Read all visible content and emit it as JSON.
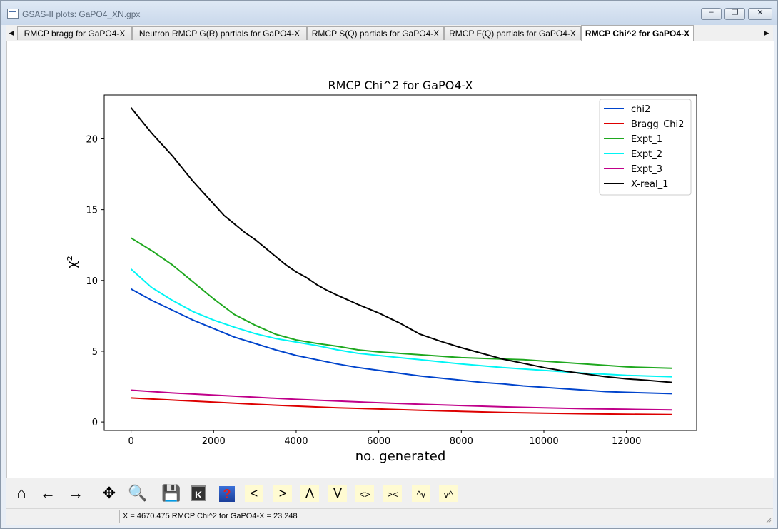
{
  "window": {
    "title": "GSAS-II plots: GaPO4_XN.gpx",
    "min_glyph": "–",
    "max_glyph": "❐",
    "close_glyph": "✕"
  },
  "tabs": [
    {
      "label": "RMCP bragg for GaPO4-X"
    },
    {
      "label": "Neutron RMCP G(R) partials for GaPO4-X"
    },
    {
      "label": "RMCP S(Q) partials for GaPO4-X"
    },
    {
      "label": "RMCP F(Q) partials for GaPO4-X"
    },
    {
      "label": "RMCP Chi^2 for GaPO4-X",
      "active": true
    }
  ],
  "chart_data": {
    "type": "line",
    "title": "RMCP Chi^2 for GaPO4-X",
    "xlabel": "no. generated",
    "ylabel": "χ²",
    "xlim": [
      -650,
      13700
    ],
    "ylim": [
      -0.6,
      23.1
    ],
    "xticks": [
      0,
      2000,
      4000,
      6000,
      8000,
      10000,
      12000
    ],
    "yticks": [
      0,
      5,
      10,
      15,
      20
    ],
    "legend_position": "top-right",
    "grid": false,
    "series": [
      {
        "name": "chi2",
        "color": "#0044cc",
        "x": [
          0,
          500,
          1000,
          1500,
          2000,
          2500,
          3000,
          3500,
          4000,
          4500,
          5000,
          5500,
          6000,
          6500,
          7000,
          7500,
          8000,
          8500,
          9000,
          9500,
          10000,
          10500,
          11000,
          11500,
          12000,
          12500,
          13100
        ],
        "y": [
          9.4,
          8.6,
          7.9,
          7.2,
          6.6,
          6.0,
          5.55,
          5.1,
          4.7,
          4.4,
          4.1,
          3.85,
          3.65,
          3.45,
          3.25,
          3.1,
          2.95,
          2.8,
          2.7,
          2.55,
          2.45,
          2.35,
          2.25,
          2.15,
          2.1,
          2.05,
          2.0
        ]
      },
      {
        "name": "Bragg_Chi2",
        "color": "#dd0000",
        "x": [
          0,
          1000,
          2000,
          3000,
          4000,
          5000,
          6000,
          7000,
          8000,
          9000,
          10000,
          11000,
          12000,
          13100
        ],
        "y": [
          1.7,
          1.55,
          1.4,
          1.25,
          1.12,
          1.0,
          0.92,
          0.82,
          0.75,
          0.67,
          0.62,
          0.58,
          0.55,
          0.52
        ]
      },
      {
        "name": "Expt_1",
        "color": "#1fa81f",
        "x": [
          0,
          500,
          1000,
          1500,
          2000,
          2500,
          3000,
          3500,
          4000,
          4500,
          5000,
          5500,
          6000,
          6500,
          7000,
          7500,
          8000,
          8500,
          9000,
          9500,
          10000,
          10500,
          11000,
          11500,
          12000,
          12500,
          13100
        ],
        "y": [
          13.0,
          12.1,
          11.1,
          9.9,
          8.7,
          7.6,
          6.85,
          6.2,
          5.8,
          5.55,
          5.35,
          5.1,
          4.95,
          4.85,
          4.75,
          4.65,
          4.55,
          4.5,
          4.45,
          4.4,
          4.3,
          4.2,
          4.1,
          4.0,
          3.9,
          3.85,
          3.8
        ]
      },
      {
        "name": "Expt_2",
        "color": "#00f5f5",
        "x": [
          0,
          500,
          1000,
          1500,
          2000,
          2500,
          3000,
          3500,
          4000,
          4500,
          5000,
          5500,
          6000,
          6500,
          7000,
          7500,
          8000,
          8500,
          9000,
          9500,
          10000,
          10500,
          11000,
          11500,
          12000,
          12500,
          13100
        ],
        "y": [
          10.8,
          9.5,
          8.6,
          7.8,
          7.2,
          6.7,
          6.25,
          5.9,
          5.65,
          5.4,
          5.1,
          4.85,
          4.7,
          4.55,
          4.4,
          4.25,
          4.1,
          3.98,
          3.85,
          3.75,
          3.65,
          3.55,
          3.45,
          3.38,
          3.3,
          3.25,
          3.2
        ]
      },
      {
        "name": "Expt_3",
        "color": "#c0008a",
        "x": [
          0,
          1000,
          2000,
          3000,
          4000,
          5000,
          6000,
          7000,
          8000,
          9000,
          10000,
          11000,
          12000,
          13100
        ],
        "y": [
          2.25,
          2.05,
          1.9,
          1.75,
          1.6,
          1.48,
          1.36,
          1.25,
          1.16,
          1.07,
          1.0,
          0.94,
          0.9,
          0.85
        ]
      },
      {
        "name": "X-real_1",
        "color": "#000000",
        "x": [
          0,
          250,
          500,
          750,
          1000,
          1250,
          1500,
          1750,
          2000,
          2250,
          2500,
          2750,
          3000,
          3250,
          3500,
          3750,
          4000,
          4250,
          4500,
          4750,
          5000,
          5500,
          6000,
          6500,
          7000,
          7500,
          8000,
          8500,
          9000,
          9500,
          10000,
          10500,
          11000,
          11500,
          12000,
          12500,
          13100
        ],
        "y": [
          22.2,
          21.3,
          20.4,
          19.6,
          18.8,
          17.9,
          17.0,
          16.2,
          15.4,
          14.6,
          14.0,
          13.4,
          12.9,
          12.3,
          11.7,
          11.1,
          10.6,
          10.2,
          9.7,
          9.3,
          8.95,
          8.3,
          7.7,
          7.0,
          6.2,
          5.7,
          5.25,
          4.85,
          4.45,
          4.15,
          3.85,
          3.6,
          3.4,
          3.2,
          3.05,
          2.95,
          2.8
        ]
      }
    ]
  },
  "toolbar": {
    "buttons": [
      {
        "icon": "home-icon",
        "glyph": "⌂"
      },
      {
        "icon": "back-arrow-icon",
        "glyph": "←"
      },
      {
        "icon": "forward-arrow-icon",
        "glyph": "→"
      },
      {
        "icon": "pan-icon",
        "glyph": "✥"
      },
      {
        "icon": "zoom-icon",
        "glyph": "🔍"
      },
      {
        "icon": "save-icon",
        "glyph": "💾"
      },
      {
        "icon": "key-icon",
        "glyph": "K"
      },
      {
        "icon": "help-icon",
        "glyph": "?"
      },
      {
        "icon": "shift-left-icon",
        "glyph": "<"
      },
      {
        "icon": "shift-right-icon",
        "glyph": ">"
      },
      {
        "icon": "shift-up-icon",
        "glyph": "Λ"
      },
      {
        "icon": "shift-down-icon",
        "glyph": "V"
      },
      {
        "icon": "expand-x-icon",
        "glyph": "<>"
      },
      {
        "icon": "shrink-x-icon",
        "glyph": "><"
      },
      {
        "icon": "expand-y-icon",
        "glyph": "^v"
      },
      {
        "icon": "shrink-y-icon",
        "glyph": "v^"
      }
    ]
  },
  "status": {
    "text": "X = 4670.475 RMCP Chi^2 for GaPO4-X =   23.248"
  }
}
